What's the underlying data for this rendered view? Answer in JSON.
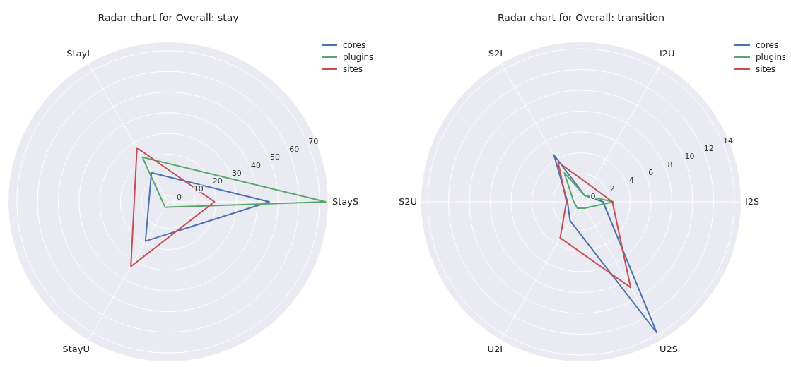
{
  "chart_data": [
    {
      "type": "radar",
      "title": "Radar chart for Overall: stay",
      "categories": [
        "StayS",
        "StayU",
        "StayI"
      ],
      "ylim": [
        -3,
        74
      ],
      "yticks": [
        0,
        10,
        20,
        30,
        40,
        50,
        60,
        70
      ],
      "grid": true,
      "legend": "top right",
      "series": [
        {
          "name": "cores",
          "color": "#4c72b0",
          "values": [
            45.7,
            18.9,
            13.2
          ]
        },
        {
          "name": "plugins",
          "color": "#55a868",
          "values": [
            72.9,
            0,
            21.9
          ]
        },
        {
          "name": "sites",
          "color": "#c44e52",
          "values": [
            19.3,
            33,
            27.1
          ]
        }
      ]
    },
    {
      "type": "radar",
      "title": "Radar chart for Overall: transition",
      "categories": [
        "I2S",
        "U2S",
        "U2I",
        "S2U",
        "S2I",
        "I2U"
      ],
      "ylim": [
        -0.7,
        14.6
      ],
      "yticks": [
        0,
        2,
        4,
        6,
        8,
        10,
        12,
        14
      ],
      "grid": true,
      "legend": "top right",
      "series": [
        {
          "name": "cores",
          "color": "#4c72b0",
          "values": [
            1.4,
            13.8,
            1.4,
            0.6,
            4.5,
            0
          ]
        },
        {
          "name": "plugins",
          "color": "#55a868",
          "values": [
            2.4,
            0,
            0,
            0,
            2.5,
            0
          ]
        },
        {
          "name": "sites",
          "color": "#c44e52",
          "values": [
            2.3,
            8.8,
            3.3,
            0.7,
            3.7,
            1.1
          ]
        }
      ]
    }
  ]
}
